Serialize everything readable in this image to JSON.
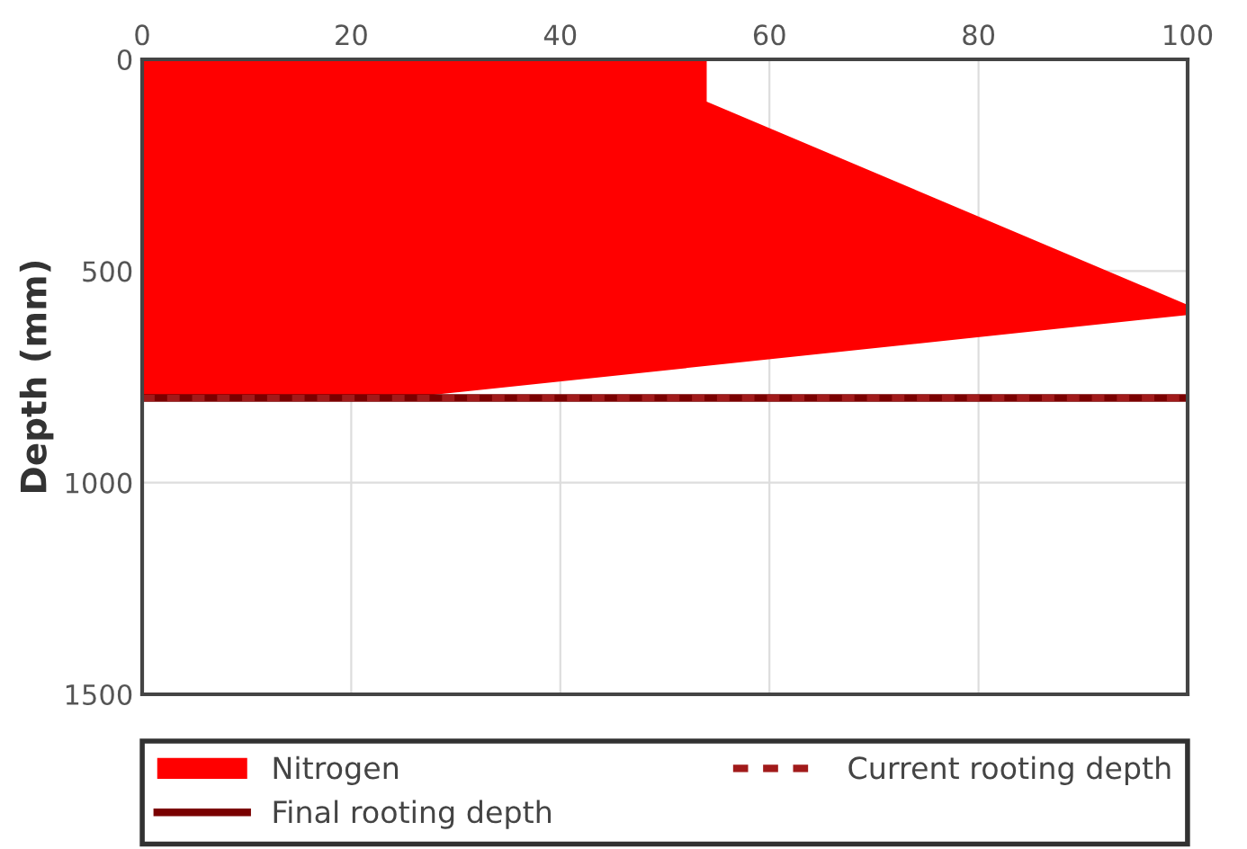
{
  "chart_data": {
    "type": "area",
    "orientation": "horizontal",
    "ylabel": "Depth (mm)",
    "x": [
      0,
      100,
      580,
      604,
      800
    ],
    "series": [
      {
        "name": "Nitrogen",
        "color": "#ff0000",
        "values": [
          54,
          54,
          100,
          100,
          25
        ]
      }
    ],
    "xlim": [
      0,
      100
    ],
    "xticks": [
      0,
      20,
      40,
      60,
      80,
      100
    ],
    "ylim": [
      1500,
      0
    ],
    "yticks": [
      0,
      500,
      1000,
      1500
    ],
    "ref_lines": [
      {
        "axis": "y",
        "value": 800,
        "label": "Final rooting depth",
        "color": "#7a0000",
        "line_style": "solid"
      },
      {
        "axis": "y",
        "value": 800,
        "label": "Current rooting depth",
        "color": "#a11a1a",
        "line_style": "dotted"
      }
    ],
    "grid": true,
    "legend": "bottom"
  }
}
